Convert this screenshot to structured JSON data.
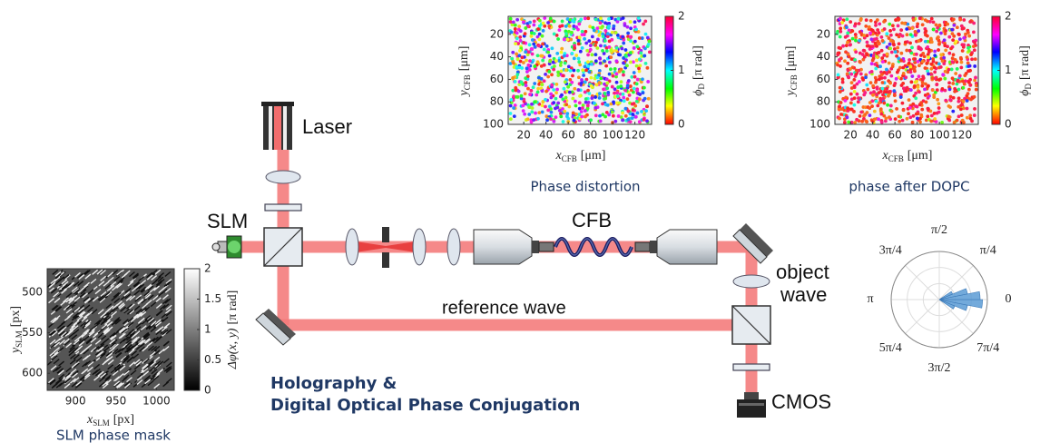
{
  "setup": {
    "laser": "Laser",
    "slm": "SLM",
    "cfb": "CFB",
    "object_wave": [
      "object",
      "wave"
    ],
    "reference_wave": "reference wave",
    "cmos": "CMOS",
    "title": [
      "Holography &",
      "Digital Optical Phase Conjugation"
    ]
  },
  "insets": [
    {
      "caption": "Phase distortion",
      "xlabel": {
        "symbol": "x",
        "sub": "CFB",
        "unit": "[μm]"
      },
      "ylabel": {
        "symbol": "y",
        "sub": "CFB",
        "unit": "[μm]"
      },
      "xlim": [
        6,
        135
      ],
      "ylim": [
        4,
        100
      ],
      "xticks": [
        20,
        40,
        60,
        80,
        100,
        120
      ],
      "yticks": [
        20,
        40,
        60,
        80,
        100
      ],
      "colorbar": {
        "label": {
          "symbol": "ϕ",
          "sub": "D",
          "unit": "[π rad]"
        },
        "lim": [
          0,
          2
        ],
        "ticks": [
          0,
          1,
          2
        ],
        "colormap": "hsv"
      }
    },
    {
      "caption": "phase after DOPC",
      "xlabel": {
        "symbol": "x",
        "sub": "CFB",
        "unit": "[μm]"
      },
      "ylabel": {
        "symbol": "y",
        "sub": "CFB",
        "unit": "[μm]"
      },
      "xlim": [
        6,
        135
      ],
      "ylim": [
        4,
        100
      ],
      "xticks": [
        20,
        40,
        60,
        80,
        100,
        120
      ],
      "yticks": [
        20,
        40,
        60,
        80,
        100
      ],
      "colorbar": {
        "label": {
          "symbol": "ϕ",
          "sub": "D",
          "unit": "[π rad]"
        },
        "lim": [
          0,
          2
        ],
        "ticks": [
          0,
          1,
          2
        ],
        "colormap": "hsv"
      }
    },
    {
      "caption": "SLM phase mask",
      "xlabel": {
        "symbol": "x",
        "sub": "SLM",
        "unit": "[px]"
      },
      "ylabel": {
        "symbol": "y",
        "sub": "SLM",
        "unit": "[px]"
      },
      "xlim": [
        865,
        1022
      ],
      "ylim": [
        471,
        621
      ],
      "xticks": [
        900,
        950,
        1000
      ],
      "yticks": [
        500,
        550,
        600
      ],
      "colorbar": {
        "label": {
          "symbol": "Δφ(x, y)",
          "unit": "[π rad]"
        },
        "lim": [
          0,
          2
        ],
        "ticks": [
          0,
          0.5,
          1,
          1.5,
          2
        ],
        "colormap": "gray"
      }
    }
  ],
  "polar": {
    "theta_ticks": [
      0,
      {
        "value": 0.25,
        "label": "π/4"
      },
      {
        "value": 0.5,
        "label": "π/2"
      },
      {
        "value": 0.75,
        "label": "3π/4"
      },
      {
        "value": 1,
        "label": "π"
      },
      {
        "value": 1.25,
        "label": "5π/4"
      },
      {
        "value": 1.5,
        "label": "3π/2"
      },
      {
        "value": 1.75,
        "label": "7π/4"
      }
    ],
    "rlim": [
      0,
      1
    ],
    "bins": [
      -0.1875,
      -0.125,
      -0.0625,
      0,
      0.0625,
      0.125,
      0.1875
    ],
    "values": [
      0.35,
      0.6,
      0.9,
      0.85,
      0.6,
      0.3
    ],
    "color": "#5b9bd5"
  }
}
